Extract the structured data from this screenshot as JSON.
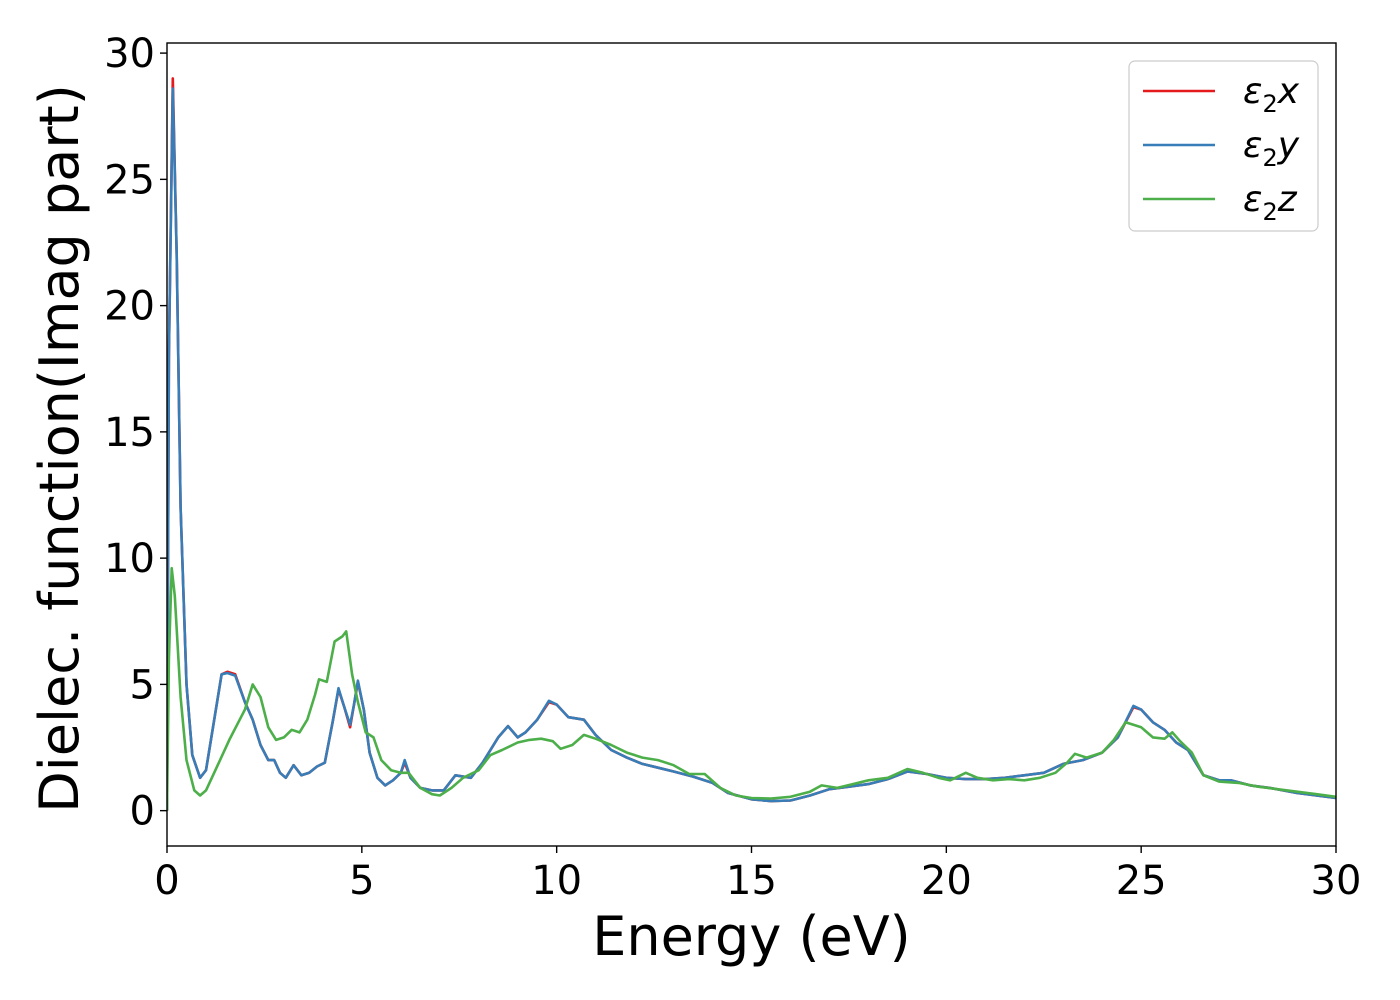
{
  "chart_data": {
    "type": "line",
    "xlabel": "Energy (eV)",
    "ylabel": "Dielec. function(Imag part)",
    "xlim": [
      0,
      30
    ],
    "ylim": [
      -1.4,
      30.4
    ],
    "xticks": [
      0,
      5,
      10,
      15,
      20,
      25,
      30
    ],
    "yticks": [
      0,
      5,
      10,
      15,
      20,
      25,
      30
    ],
    "grid": false,
    "legend_position": "top-right",
    "series": [
      {
        "name": "ε2x",
        "symbol": "ε",
        "subscript": "2",
        "axis": "x",
        "color": "#e41a1c",
        "points": [
          [
            0,
            0
          ],
          [
            0.05,
            18
          ],
          [
            0.15,
            29.0
          ],
          [
            0.25,
            22
          ],
          [
            0.35,
            12
          ],
          [
            0.5,
            5
          ],
          [
            0.65,
            2.2
          ],
          [
            0.85,
            1.3
          ],
          [
            1.0,
            1.6
          ],
          [
            1.2,
            3.5
          ],
          [
            1.4,
            5.4
          ],
          [
            1.55,
            5.5
          ],
          [
            1.75,
            5.4
          ],
          [
            2.0,
            4.3
          ],
          [
            2.2,
            3.6
          ],
          [
            2.4,
            2.6
          ],
          [
            2.6,
            2.0
          ],
          [
            2.75,
            2.0
          ],
          [
            2.9,
            1.5
          ],
          [
            3.05,
            1.3
          ],
          [
            3.25,
            1.8
          ],
          [
            3.45,
            1.4
          ],
          [
            3.65,
            1.5
          ],
          [
            3.85,
            1.75
          ],
          [
            4.05,
            1.9
          ],
          [
            4.25,
            3.5
          ],
          [
            4.4,
            4.8
          ],
          [
            4.55,
            4.1
          ],
          [
            4.7,
            3.3
          ],
          [
            4.8,
            4.2
          ],
          [
            4.9,
            5.1
          ],
          [
            5.05,
            4.0
          ],
          [
            5.2,
            2.3
          ],
          [
            5.4,
            1.3
          ],
          [
            5.6,
            1.0
          ],
          [
            5.8,
            1.2
          ],
          [
            6.0,
            1.5
          ],
          [
            6.1,
            1.9
          ],
          [
            6.25,
            1.3
          ],
          [
            6.5,
            0.9
          ],
          [
            6.8,
            0.8
          ],
          [
            7.1,
            0.8
          ],
          [
            7.4,
            1.4
          ],
          [
            7.8,
            1.3
          ],
          [
            8.1,
            1.9
          ],
          [
            8.5,
            2.9
          ],
          [
            8.75,
            3.35
          ],
          [
            9.0,
            2.9
          ],
          [
            9.2,
            3.1
          ],
          [
            9.5,
            3.6
          ],
          [
            9.8,
            4.3
          ],
          [
            10.0,
            4.2
          ],
          [
            10.3,
            3.7
          ],
          [
            10.7,
            3.6
          ],
          [
            11.0,
            3.0
          ],
          [
            11.4,
            2.4
          ],
          [
            11.8,
            2.1
          ],
          [
            12.2,
            1.85
          ],
          [
            12.6,
            1.7
          ],
          [
            13.0,
            1.55
          ],
          [
            13.5,
            1.35
          ],
          [
            14.0,
            1.1
          ],
          [
            14.4,
            0.7
          ],
          [
            15.0,
            0.45
          ],
          [
            15.5,
            0.38
          ],
          [
            16.0,
            0.4
          ],
          [
            16.5,
            0.6
          ],
          [
            17.0,
            0.85
          ],
          [
            17.5,
            0.95
          ],
          [
            18.0,
            1.05
          ],
          [
            18.5,
            1.25
          ],
          [
            19.0,
            1.55
          ],
          [
            19.5,
            1.45
          ],
          [
            20.0,
            1.3
          ],
          [
            20.5,
            1.25
          ],
          [
            21.0,
            1.25
          ],
          [
            21.5,
            1.3
          ],
          [
            22.0,
            1.4
          ],
          [
            22.5,
            1.5
          ],
          [
            23.0,
            1.85
          ],
          [
            23.5,
            2.0
          ],
          [
            24.0,
            2.3
          ],
          [
            24.4,
            2.9
          ],
          [
            24.8,
            4.1
          ],
          [
            25.0,
            4.0
          ],
          [
            25.3,
            3.5
          ],
          [
            25.6,
            3.2
          ],
          [
            25.9,
            2.7
          ],
          [
            26.2,
            2.4
          ],
          [
            26.6,
            1.4
          ],
          [
            27.0,
            1.2
          ],
          [
            27.3,
            1.2
          ],
          [
            27.8,
            1.0
          ],
          [
            28.3,
            0.9
          ],
          [
            29.0,
            0.7
          ],
          [
            29.5,
            0.6
          ],
          [
            30.0,
            0.5
          ]
        ]
      },
      {
        "name": "ε2y",
        "symbol": "ε",
        "subscript": "2",
        "axis": "y",
        "color": "#377eb8",
        "points": [
          [
            0,
            0
          ],
          [
            0.05,
            18
          ],
          [
            0.15,
            28.6
          ],
          [
            0.25,
            22
          ],
          [
            0.35,
            12
          ],
          [
            0.5,
            5
          ],
          [
            0.65,
            2.2
          ],
          [
            0.85,
            1.3
          ],
          [
            1.0,
            1.6
          ],
          [
            1.2,
            3.5
          ],
          [
            1.4,
            5.4
          ],
          [
            1.55,
            5.45
          ],
          [
            1.75,
            5.35
          ],
          [
            2.0,
            4.3
          ],
          [
            2.2,
            3.6
          ],
          [
            2.4,
            2.6
          ],
          [
            2.6,
            2.0
          ],
          [
            2.75,
            2.0
          ],
          [
            2.9,
            1.5
          ],
          [
            3.05,
            1.3
          ],
          [
            3.25,
            1.8
          ],
          [
            3.45,
            1.4
          ],
          [
            3.65,
            1.5
          ],
          [
            3.85,
            1.75
          ],
          [
            4.05,
            1.9
          ],
          [
            4.25,
            3.5
          ],
          [
            4.4,
            4.85
          ],
          [
            4.55,
            4.1
          ],
          [
            4.7,
            3.4
          ],
          [
            4.8,
            4.2
          ],
          [
            4.9,
            5.15
          ],
          [
            5.05,
            4.0
          ],
          [
            5.2,
            2.3
          ],
          [
            5.4,
            1.3
          ],
          [
            5.6,
            1.0
          ],
          [
            5.8,
            1.2
          ],
          [
            6.0,
            1.5
          ],
          [
            6.1,
            2.0
          ],
          [
            6.25,
            1.3
          ],
          [
            6.5,
            0.9
          ],
          [
            6.8,
            0.8
          ],
          [
            7.1,
            0.8
          ],
          [
            7.4,
            1.4
          ],
          [
            7.8,
            1.3
          ],
          [
            8.1,
            1.9
          ],
          [
            8.5,
            2.9
          ],
          [
            8.75,
            3.35
          ],
          [
            9.0,
            2.9
          ],
          [
            9.2,
            3.1
          ],
          [
            9.5,
            3.6
          ],
          [
            9.8,
            4.35
          ],
          [
            10.0,
            4.2
          ],
          [
            10.3,
            3.7
          ],
          [
            10.7,
            3.6
          ],
          [
            11.0,
            3.0
          ],
          [
            11.4,
            2.4
          ],
          [
            11.8,
            2.1
          ],
          [
            12.2,
            1.85
          ],
          [
            12.6,
            1.7
          ],
          [
            13.0,
            1.55
          ],
          [
            13.5,
            1.35
          ],
          [
            14.0,
            1.1
          ],
          [
            14.4,
            0.7
          ],
          [
            15.0,
            0.45
          ],
          [
            15.5,
            0.38
          ],
          [
            16.0,
            0.4
          ],
          [
            16.5,
            0.6
          ],
          [
            17.0,
            0.85
          ],
          [
            17.5,
            0.95
          ],
          [
            18.0,
            1.05
          ],
          [
            18.5,
            1.25
          ],
          [
            19.0,
            1.55
          ],
          [
            19.5,
            1.45
          ],
          [
            20.0,
            1.3
          ],
          [
            20.5,
            1.25
          ],
          [
            21.0,
            1.25
          ],
          [
            21.5,
            1.3
          ],
          [
            22.0,
            1.4
          ],
          [
            22.5,
            1.5
          ],
          [
            23.0,
            1.85
          ],
          [
            23.5,
            2.0
          ],
          [
            24.0,
            2.3
          ],
          [
            24.4,
            2.9
          ],
          [
            24.8,
            4.15
          ],
          [
            25.0,
            4.0
          ],
          [
            25.3,
            3.5
          ],
          [
            25.6,
            3.2
          ],
          [
            25.9,
            2.7
          ],
          [
            26.2,
            2.4
          ],
          [
            26.6,
            1.4
          ],
          [
            27.0,
            1.2
          ],
          [
            27.3,
            1.2
          ],
          [
            27.8,
            1.0
          ],
          [
            28.3,
            0.9
          ],
          [
            29.0,
            0.7
          ],
          [
            29.5,
            0.6
          ],
          [
            30.0,
            0.5
          ]
        ]
      },
      {
        "name": "ε2z",
        "symbol": "ε",
        "subscript": "2",
        "axis": "z",
        "color": "#4daf4a",
        "points": [
          [
            0,
            0
          ],
          [
            0.05,
            6
          ],
          [
            0.12,
            9.6
          ],
          [
            0.2,
            8.5
          ],
          [
            0.35,
            4.5
          ],
          [
            0.5,
            2
          ],
          [
            0.7,
            0.8
          ],
          [
            0.85,
            0.6
          ],
          [
            1.0,
            0.8
          ],
          [
            1.3,
            1.8
          ],
          [
            1.6,
            2.8
          ],
          [
            1.9,
            3.7
          ],
          [
            2.0,
            4.0
          ],
          [
            2.2,
            5.0
          ],
          [
            2.4,
            4.5
          ],
          [
            2.6,
            3.3
          ],
          [
            2.8,
            2.8
          ],
          [
            3.0,
            2.9
          ],
          [
            3.2,
            3.2
          ],
          [
            3.4,
            3.1
          ],
          [
            3.6,
            3.6
          ],
          [
            3.8,
            4.6
          ],
          [
            3.9,
            5.2
          ],
          [
            4.1,
            5.1
          ],
          [
            4.3,
            6.7
          ],
          [
            4.5,
            6.9
          ],
          [
            4.6,
            7.1
          ],
          [
            4.75,
            5.4
          ],
          [
            4.9,
            4.3
          ],
          [
            5.1,
            3.1
          ],
          [
            5.3,
            2.9
          ],
          [
            5.5,
            2.0
          ],
          [
            5.75,
            1.6
          ],
          [
            6.0,
            1.5
          ],
          [
            6.2,
            1.5
          ],
          [
            6.5,
            0.9
          ],
          [
            6.8,
            0.65
          ],
          [
            7.0,
            0.6
          ],
          [
            7.3,
            0.9
          ],
          [
            7.6,
            1.3
          ],
          [
            8.0,
            1.6
          ],
          [
            8.3,
            2.2
          ],
          [
            8.6,
            2.4
          ],
          [
            9.0,
            2.7
          ],
          [
            9.3,
            2.8
          ],
          [
            9.6,
            2.85
          ],
          [
            9.9,
            2.75
          ],
          [
            10.1,
            2.45
          ],
          [
            10.4,
            2.6
          ],
          [
            10.7,
            3.0
          ],
          [
            11.0,
            2.85
          ],
          [
            11.4,
            2.6
          ],
          [
            11.8,
            2.3
          ],
          [
            12.2,
            2.1
          ],
          [
            12.6,
            2.0
          ],
          [
            13.0,
            1.8
          ],
          [
            13.4,
            1.45
          ],
          [
            13.8,
            1.45
          ],
          [
            14.2,
            0.9
          ],
          [
            14.6,
            0.6
          ],
          [
            15.0,
            0.5
          ],
          [
            15.5,
            0.48
          ],
          [
            16.0,
            0.55
          ],
          [
            16.5,
            0.75
          ],
          [
            16.8,
            1.0
          ],
          [
            17.2,
            0.9
          ],
          [
            17.6,
            1.05
          ],
          [
            18.0,
            1.2
          ],
          [
            18.5,
            1.3
          ],
          [
            19.0,
            1.65
          ],
          [
            19.4,
            1.5
          ],
          [
            19.8,
            1.3
          ],
          [
            20.1,
            1.2
          ],
          [
            20.5,
            1.5
          ],
          [
            20.8,
            1.3
          ],
          [
            21.2,
            1.2
          ],
          [
            21.6,
            1.25
          ],
          [
            22.0,
            1.2
          ],
          [
            22.4,
            1.3
          ],
          [
            22.8,
            1.5
          ],
          [
            23.1,
            1.9
          ],
          [
            23.3,
            2.25
          ],
          [
            23.6,
            2.1
          ],
          [
            24.0,
            2.3
          ],
          [
            24.3,
            2.8
          ],
          [
            24.6,
            3.5
          ],
          [
            25.0,
            3.3
          ],
          [
            25.3,
            2.9
          ],
          [
            25.6,
            2.85
          ],
          [
            25.8,
            3.1
          ],
          [
            26.0,
            2.75
          ],
          [
            26.3,
            2.3
          ],
          [
            26.6,
            1.4
          ],
          [
            27.0,
            1.15
          ],
          [
            27.5,
            1.1
          ],
          [
            28.0,
            0.95
          ],
          [
            28.5,
            0.85
          ],
          [
            29.0,
            0.75
          ],
          [
            29.5,
            0.65
          ],
          [
            30.0,
            0.55
          ]
        ]
      }
    ]
  }
}
